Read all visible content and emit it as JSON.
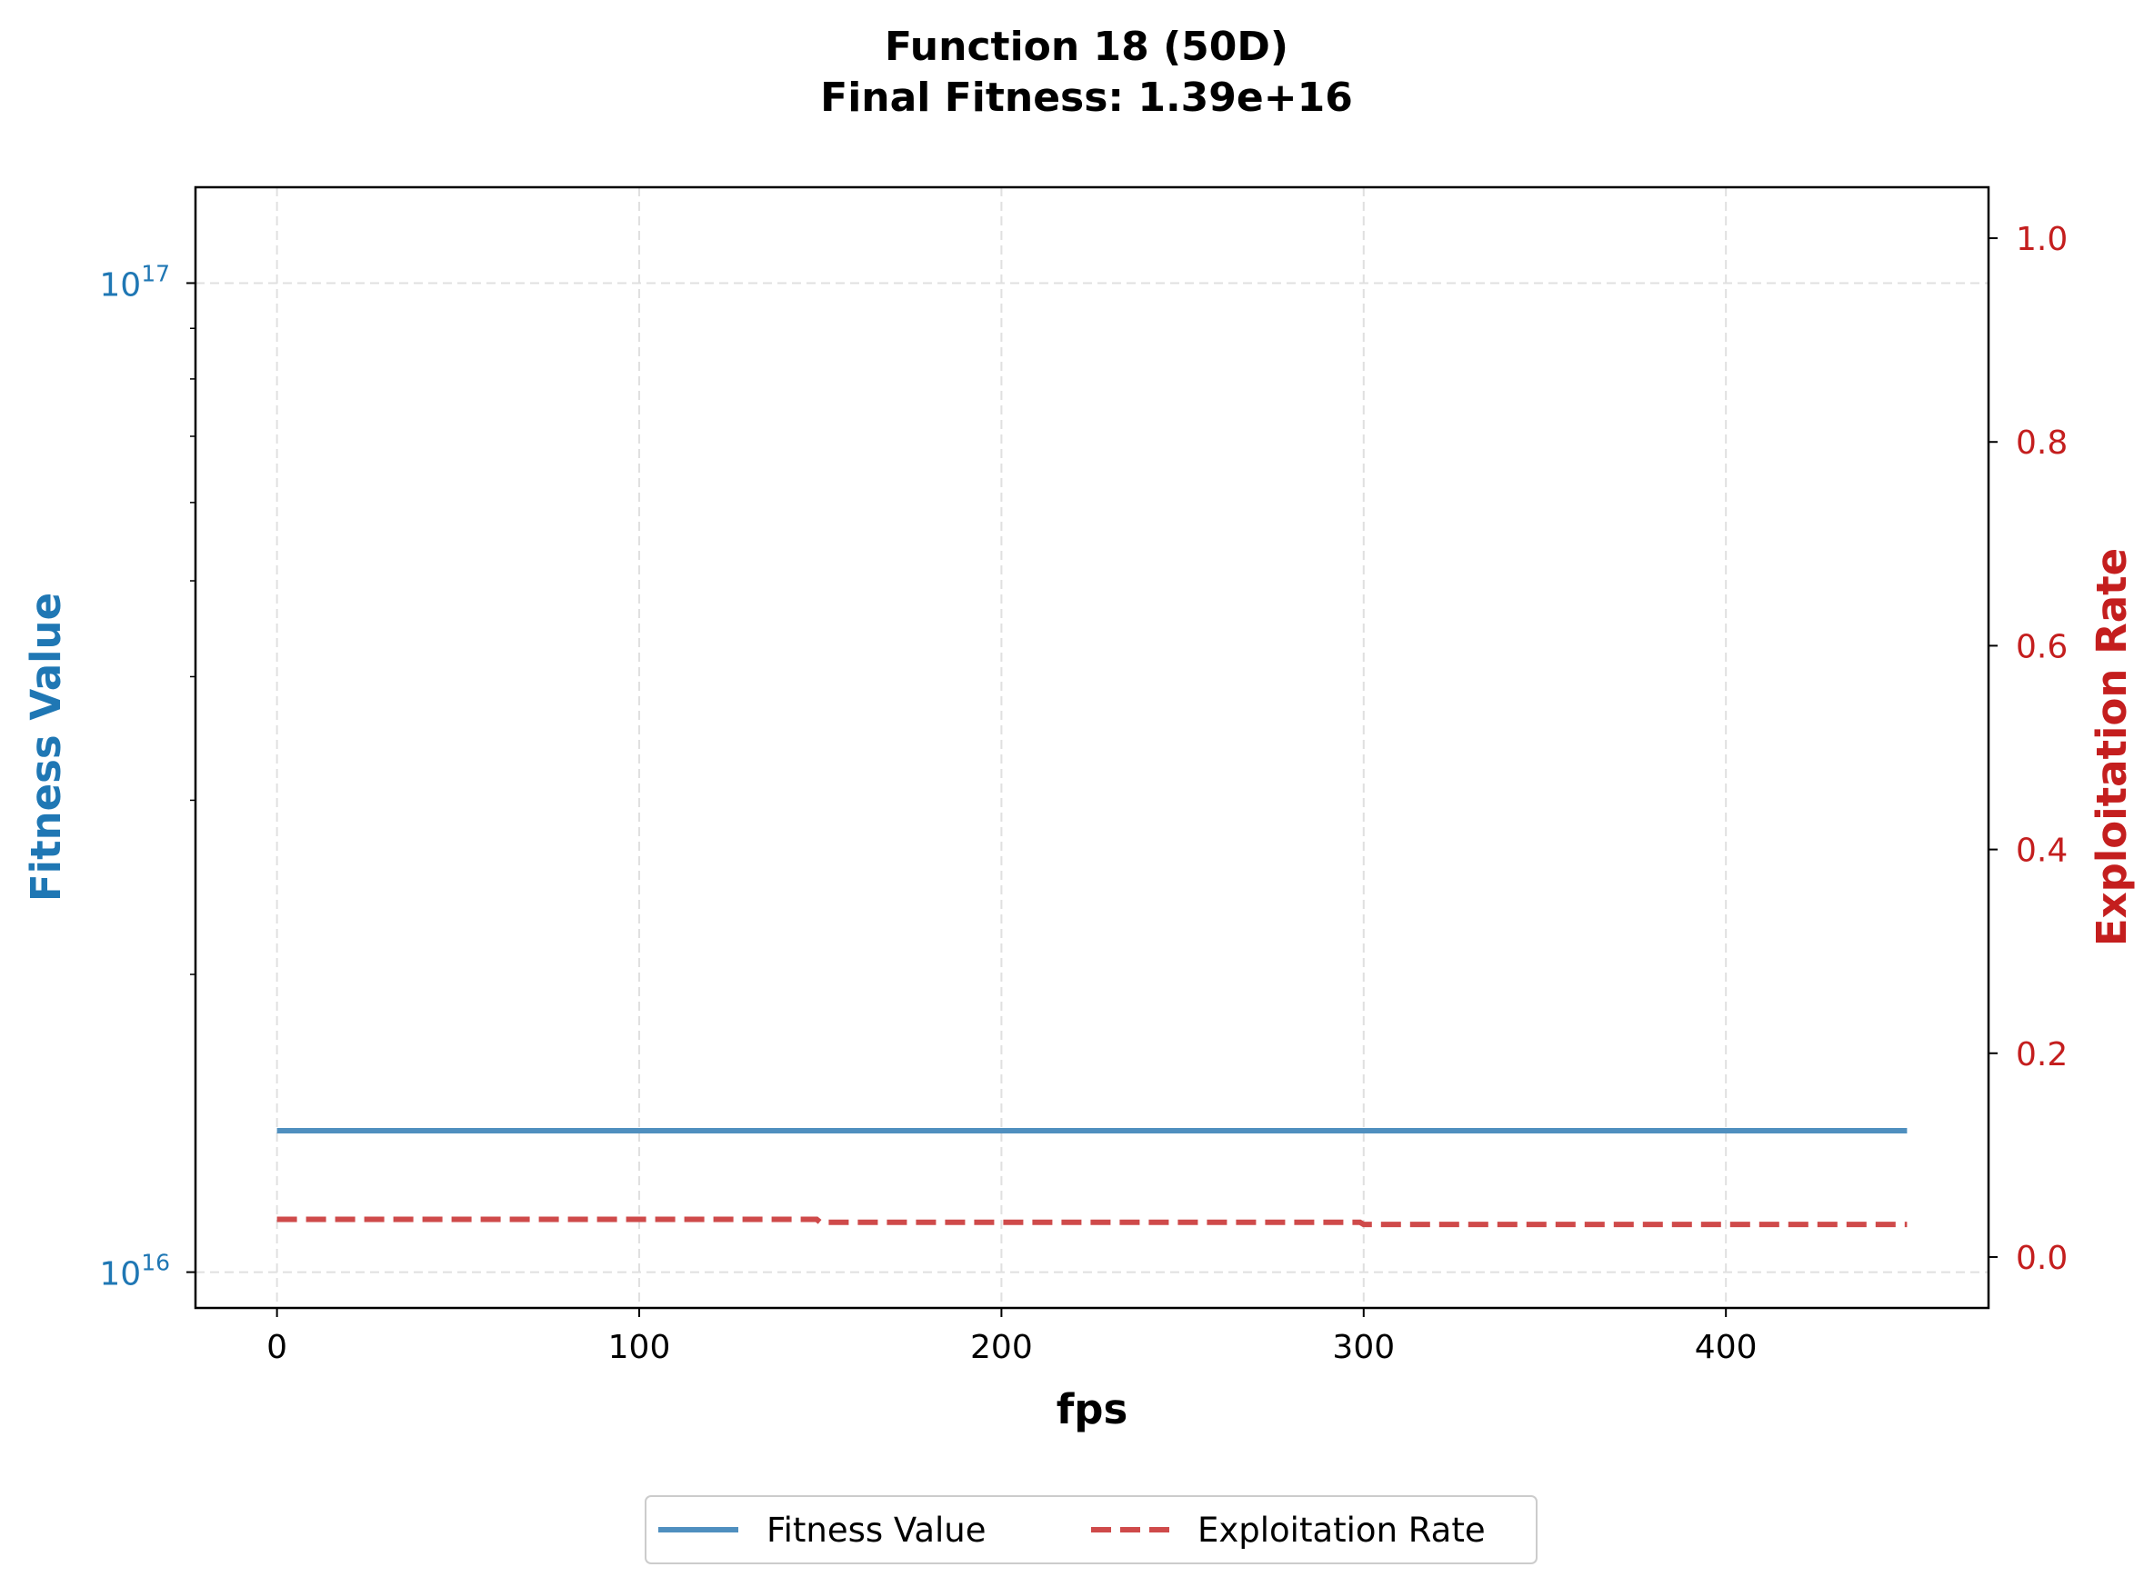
{
  "chart_data": {
    "type": "line",
    "title_line1": "Function 18 (50D)",
    "title_line2": "Final Fitness: 1.39e+16",
    "xlabel": "fps",
    "ylabel_left": "Fitness Value",
    "ylabel_right": "Exploitation Rate",
    "xlim": [
      -22.5,
      472.5
    ],
    "x_ticks": [
      0,
      100,
      200,
      300,
      400
    ],
    "x_tick_labels": [
      "0",
      "100",
      "200",
      "300",
      "400"
    ],
    "y_left_scale": "log",
    "y_left_lim": [
      9200000000000000.0,
      1.25e+17
    ],
    "y_left_major_ticks": [
      1e+16,
      1e+17
    ],
    "y_left_major_tick_labels": [
      {
        "base": "10",
        "exp": "16"
      },
      {
        "base": "10",
        "exp": "17"
      }
    ],
    "y_left_minor_ticks": [
      2e+16,
      3e+16,
      4e+16,
      5e+16,
      6e+16,
      7e+16,
      8e+16,
      9e+16
    ],
    "y_right_lim": [
      -0.05,
      1.05
    ],
    "y_right_ticks": [
      0.0,
      0.2,
      0.4,
      0.6,
      0.8,
      1.0
    ],
    "y_right_tick_labels": [
      "0.0",
      "0.2",
      "0.4",
      "0.6",
      "0.8",
      "1.0"
    ],
    "grid": true,
    "legend_position": "bottom-center",
    "series": [
      {
        "name": "Fitness Value",
        "axis": "left",
        "color": "#4f8fbf",
        "style": "solid",
        "x": [
          0,
          150,
          300,
          450
        ],
        "y": [
          1.39e+16,
          1.39e+16,
          1.39e+16,
          1.39e+16
        ]
      },
      {
        "name": "Exploitation Rate",
        "axis": "right",
        "color": "#cf4a4a",
        "style": "dashed",
        "x": [
          0,
          149,
          150,
          299,
          300,
          450
        ],
        "y": [
          0.037,
          0.037,
          0.034,
          0.034,
          0.032,
          0.032
        ]
      }
    ],
    "colors": {
      "left_axis": "#1f77b4",
      "right_axis": "#c41e1e",
      "grid": "#e0e0e0",
      "frame": "#000000"
    }
  }
}
